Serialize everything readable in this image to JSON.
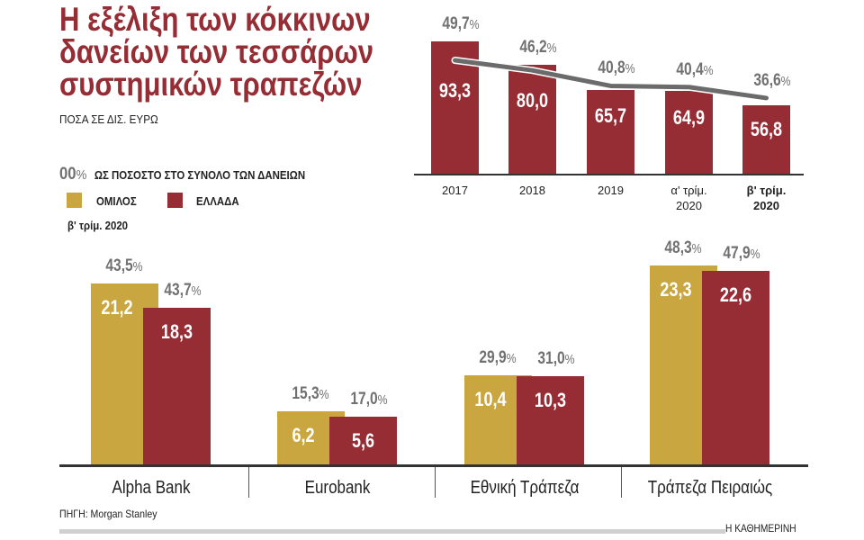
{
  "title_lines": [
    "Η εξέλιξη των κόκκινων",
    "δανείων των τεσσάρων",
    "συστημικών τραπεζών"
  ],
  "subtitle": "ΠΟΣΑ ΣΕ ΔΙΣ. ΕΥΡΩ",
  "legend": {
    "pct_sample": "00",
    "pct_sign": "%",
    "pct_label": "ΩΣ ΠΟΣΟΣΤΟ ΣΤΟ ΣΥΝΟΛΟ ΤΩΝ ΔΑΝΕΙΩΝ",
    "group_label": "ΟΜΙΛΟΣ",
    "greece_label": "ΕΛΛΑΔΑ",
    "period": "β' τρίμ. 2020"
  },
  "colors": {
    "group": "#c9a640",
    "greece": "#962d35",
    "percent": "#717171",
    "line": "#6b6b6b"
  },
  "source": "ΠΗΓΗ: Morgan Stanley",
  "publisher": "Η ΚΑΘΗΜΕΡΙΝΗ",
  "chart_data": [
    {
      "type": "bar",
      "categories": [
        [
          "2017"
        ],
        [
          "2018"
        ],
        [
          "2019"
        ],
        [
          "α' τρίμ.",
          "2020"
        ],
        [
          "β' τρίμ.",
          "2020"
        ]
      ],
      "series": [
        {
          "name": "",
          "values": [
            "93,3",
            "80,0",
            "65,7",
            "64,9",
            "56,8"
          ],
          "numeric": [
            93.3,
            80.0,
            65.7,
            64.9,
            56.8
          ],
          "color": "#962d35"
        },
        {
          "name": "",
          "type": "line",
          "values": [
            "49,7",
            "46,2",
            "40,8",
            "40,4",
            "36,6"
          ],
          "numeric": [
            49.7,
            46.2,
            40.8,
            40.4,
            36.6
          ],
          "unit": "%"
        }
      ]
    },
    {
      "type": "bar",
      "categories": [
        "Alpha Bank",
        "Eurobank",
        "Εθνική Τράπεζα",
        "Τράπεζα Πειραιώς"
      ],
      "series": [
        {
          "name": "ΟΜΙΛΟΣ",
          "values": [
            "21,2",
            "6,2",
            "10,4",
            "23,3"
          ],
          "numeric": [
            21.2,
            6.2,
            10.4,
            23.3
          ],
          "pct": [
            "43,5",
            "15,3",
            "29,9",
            "48,3"
          ]
        },
        {
          "name": "ΕΛΛΑΔΑ",
          "values": [
            "18,3",
            "5,6",
            "10,3",
            "22,6"
          ],
          "numeric": [
            18.3,
            5.6,
            10.3,
            22.6
          ],
          "pct": [
            "43,7",
            "17,0",
            "31,0",
            "47,9"
          ]
        }
      ]
    }
  ]
}
